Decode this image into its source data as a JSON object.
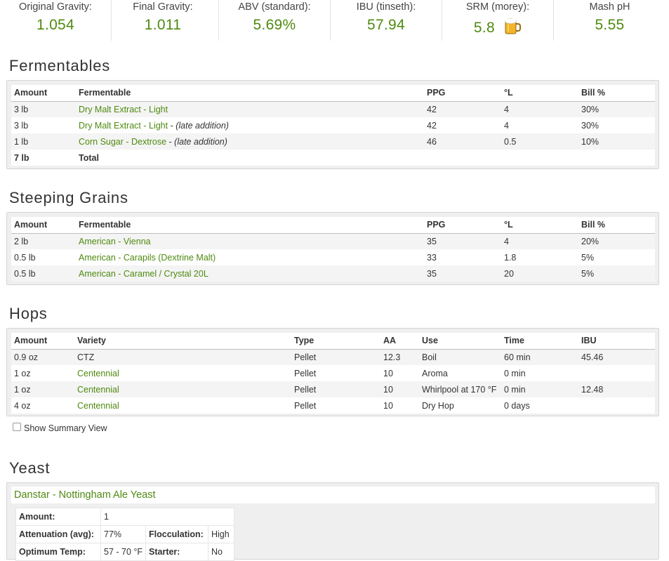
{
  "stats": [
    {
      "label": "Original Gravity:",
      "value": "1.054"
    },
    {
      "label": "Final Gravity:",
      "value": "1.011"
    },
    {
      "label": "ABV (standard):",
      "value": "5.69%"
    },
    {
      "label": "IBU (tinseth):",
      "value": "57.94"
    },
    {
      "label": "SRM (morey):",
      "value": "5.8",
      "icon": "beer-mug-icon"
    },
    {
      "label": "Mash pH",
      "value": "5.55"
    }
  ],
  "fermentables": {
    "title": "Fermentables",
    "headers": [
      "Amount",
      "Fermentable",
      "PPG",
      "°L",
      "Bill %"
    ],
    "rows": [
      {
        "amount": "3 lb",
        "name": "Dry Malt Extract - Light",
        "note": "",
        "ppg": "42",
        "lovibond": "4",
        "bill": "30%"
      },
      {
        "amount": "3 lb",
        "name": "Dry Malt Extract - Light",
        "note": "(late addition)",
        "ppg": "42",
        "lovibond": "4",
        "bill": "30%"
      },
      {
        "amount": "1 lb",
        "name": "Corn Sugar - Dextrose",
        "note": "(late addition)",
        "ppg": "46",
        "lovibond": "0.5",
        "bill": "10%"
      }
    ],
    "total": {
      "amount": "7 lb",
      "label": "Total"
    }
  },
  "steeping": {
    "title": "Steeping Grains",
    "headers": [
      "Amount",
      "Fermentable",
      "PPG",
      "°L",
      "Bill %"
    ],
    "rows": [
      {
        "amount": "2 lb",
        "name": "American - Vienna",
        "ppg": "35",
        "lovibond": "4",
        "bill": "20%"
      },
      {
        "amount": "0.5 lb",
        "name": "American - Carapils (Dextrine Malt)",
        "ppg": "33",
        "lovibond": "1.8",
        "bill": "5%"
      },
      {
        "amount": "0.5 lb",
        "name": "American - Caramel / Crystal 20L",
        "ppg": "35",
        "lovibond": "20",
        "bill": "5%"
      }
    ]
  },
  "hops": {
    "title": "Hops",
    "headers": [
      "Amount",
      "Variety",
      "Type",
      "AA",
      "Use",
      "Time",
      "IBU"
    ],
    "rows": [
      {
        "amount": "0.9 oz",
        "variety": "CTZ",
        "type": "Pellet",
        "aa": "12.3",
        "use": "Boil",
        "time": "60 min",
        "ibu": "45.46"
      },
      {
        "amount": "1 oz",
        "variety": "Centennial",
        "type": "Pellet",
        "aa": "10",
        "use": "Aroma",
        "time": "0 min",
        "ibu": ""
      },
      {
        "amount": "1 oz",
        "variety": "Centennial",
        "type": "Pellet",
        "aa": "10",
        "use": "Whirlpool at 170 °F",
        "time": "0 min",
        "ibu": "12.48"
      },
      {
        "amount": "4 oz",
        "variety": "Centennial",
        "type": "Pellet",
        "aa": "10",
        "use": "Dry Hop",
        "time": "0 days",
        "ibu": ""
      }
    ]
  },
  "summary_toggle": {
    "label": "Show Summary View",
    "checked": false
  },
  "yeast": {
    "title": "Yeast",
    "name": "Danstar - Nottingham Ale Yeast",
    "amount_label": "Amount:",
    "amount": "1",
    "attenuation_label": "Attenuation (avg):",
    "attenuation": "77%",
    "flocculation_label": "Flocculation:",
    "flocculation": "High",
    "temp_label": "Optimum Temp:",
    "temp": "57 - 70 °F",
    "starter_label": "Starter:",
    "starter": "No"
  },
  "colors": {
    "accent": "#4f8a10",
    "panel": "#efefef",
    "text": "#333333"
  }
}
